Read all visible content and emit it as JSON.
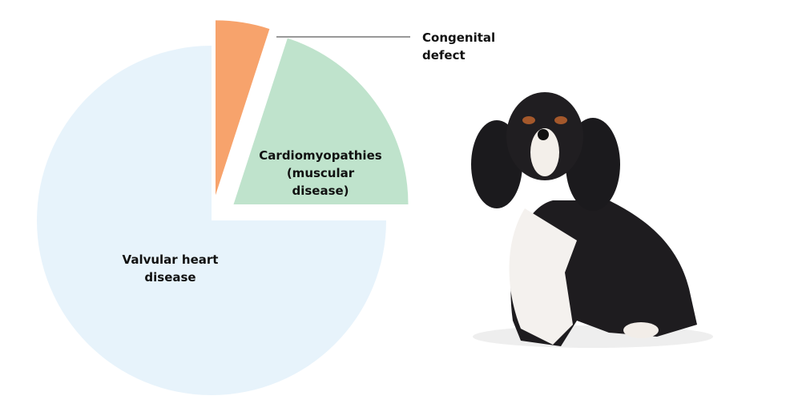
{
  "chart_data": {
    "type": "pie",
    "categories": [
      "Congenital defect",
      "Cardiomyopathies (muscular disease)",
      "Valvular heart disease"
    ],
    "values": [
      5,
      20,
      75
    ],
    "colors": [
      "#f7a36c",
      "#bfe3cc",
      "#e7f3fb"
    ]
  }
}
